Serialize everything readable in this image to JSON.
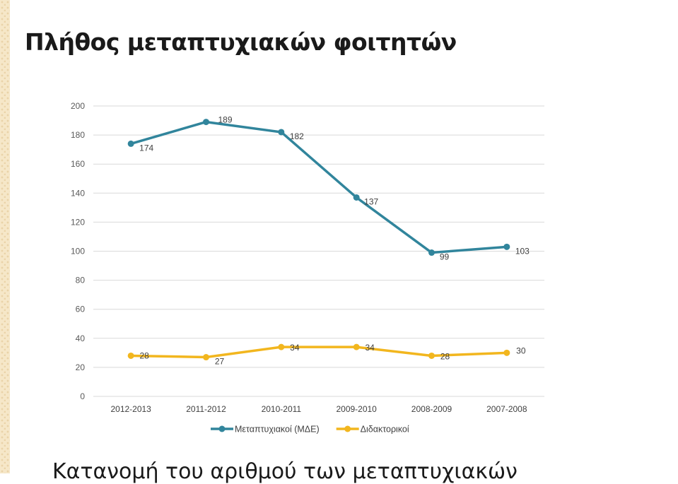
{
  "slide": {
    "title": "Πλήθος μεταπτυχιακών φοιτητών",
    "bottom_text": "Κατανομή του αριθμού των μεταπτυχιακών"
  },
  "colors": {
    "series_1": "#31859c",
    "series_2": "#f2b61e",
    "grid": "#d9d9d9"
  },
  "chart_data": {
    "type": "line",
    "categories": [
      "2012-2013",
      "2011-2012",
      "2010-2011",
      "2009-2010",
      "2008-2009",
      "2007-2008"
    ],
    "series": [
      {
        "name": "Μεταπτυχιακοί (ΜΔΕ)",
        "values": [
          174,
          189,
          182,
          137,
          99,
          103
        ]
      },
      {
        "name": "Διδακτορικοί",
        "values": [
          28,
          27,
          34,
          34,
          28,
          30
        ]
      }
    ],
    "ylim": [
      0,
      200
    ],
    "yticks": [
      200,
      180,
      160,
      140,
      120,
      100,
      80,
      60,
      40,
      20,
      0
    ],
    "grid": true,
    "legend": "bottom"
  }
}
